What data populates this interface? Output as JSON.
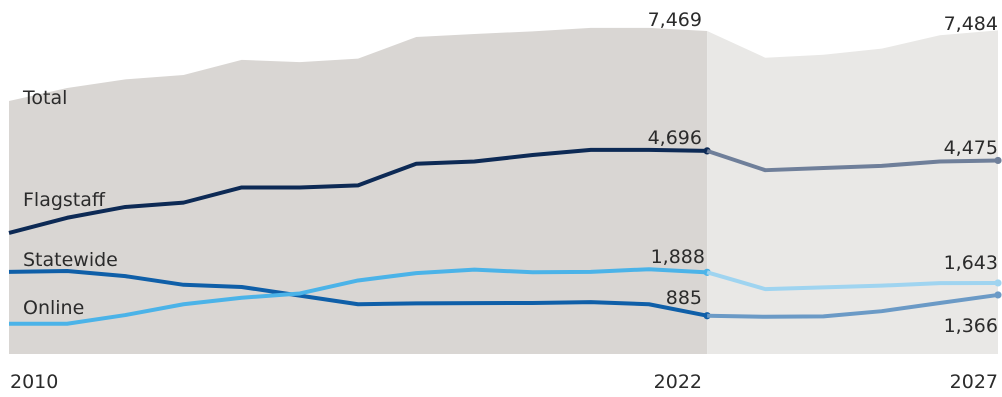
{
  "chart_data": {
    "type": "area",
    "title": "",
    "xlabel": "",
    "ylabel": "",
    "x": [
      2010,
      2011,
      2012,
      2013,
      2014,
      2015,
      2016,
      2017,
      2018,
      2019,
      2020,
      2021,
      2022,
      2023,
      2024,
      2025,
      2026,
      2027
    ],
    "actual_end_x": 2022,
    "projection_start_x": 2022,
    "x_tick_labels": [
      "2010",
      "2022",
      "2027"
    ],
    "ylim": [
      0,
      8000
    ],
    "grid": false,
    "legend": "none",
    "series": [
      {
        "name": "Total",
        "style": "area",
        "label": "Total",
        "values": [
          5850,
          6150,
          6350,
          6450,
          6800,
          6750,
          6830,
          7330,
          7400,
          7460,
          7540,
          7540,
          7469,
          6850,
          6920,
          7060,
          7370,
          7484
        ]
      },
      {
        "name": "Flagstaff",
        "style": "line",
        "label": "Flagstaff",
        "values": [
          2800,
          3150,
          3400,
          3500,
          3850,
          3850,
          3900,
          4400,
          4450,
          4600,
          4720,
          4720,
          4696,
          4250,
          4300,
          4350,
          4450,
          4475
        ]
      },
      {
        "name": "Statewide",
        "style": "line",
        "label": "Statewide",
        "values": [
          1900,
          1920,
          1800,
          1600,
          1550,
          1350,
          1150,
          1170,
          1175,
          1180,
          1200,
          1150,
          885,
          null,
          null,
          null,
          null,
          null
        ]
      },
      {
        "name": "Online",
        "style": "line",
        "label": "Online",
        "values": [
          700,
          700,
          900,
          1150,
          1300,
          1400,
          1700,
          1870,
          1950,
          1890,
          1900,
          1960,
          1888,
          null,
          null,
          null,
          null,
          null
        ]
      },
      {
        "name": "Online (projected)",
        "style": "line",
        "values": [
          null,
          null,
          null,
          null,
          null,
          null,
          null,
          null,
          null,
          null,
          null,
          null,
          1888,
          1500,
          1540,
          1580,
          1640,
          1643
        ]
      },
      {
        "name": "Statewide (projected)",
        "style": "line",
        "values": [
          null,
          null,
          null,
          null,
          null,
          null,
          null,
          null,
          null,
          null,
          null,
          null,
          885,
          860,
          870,
          990,
          1180,
          1366
        ]
      }
    ],
    "data_labels": [
      {
        "series": "Total",
        "x": 2022,
        "text": "7,469"
      },
      {
        "series": "Total",
        "x": 2027,
        "text": "7,484"
      },
      {
        "series": "Flagstaff",
        "x": 2022,
        "text": "4,696"
      },
      {
        "series": "Flagstaff",
        "x": 2027,
        "text": "4,475"
      },
      {
        "series": "Online",
        "x": 2022,
        "text": "1,888"
      },
      {
        "series": "Online (projected)",
        "x": 2027,
        "text": "1,643"
      },
      {
        "series": "Statewide",
        "x": 2022,
        "text": "885"
      },
      {
        "series": "Statewide (projected)",
        "x": 2027,
        "text": "1,366"
      }
    ]
  },
  "colors": {
    "total_area_actual": "#d9d6d3",
    "total_area_projected": "#e9e8e6",
    "flagstaff": "#0d2a55",
    "flagstaff_projected": "#6f7f9a",
    "statewide": "#0f5fa8",
    "statewide_projected": "#6b9ac6",
    "online": "#4bb3e8",
    "online_projected": "#9fd4f0",
    "text": "#2b2b2b"
  }
}
